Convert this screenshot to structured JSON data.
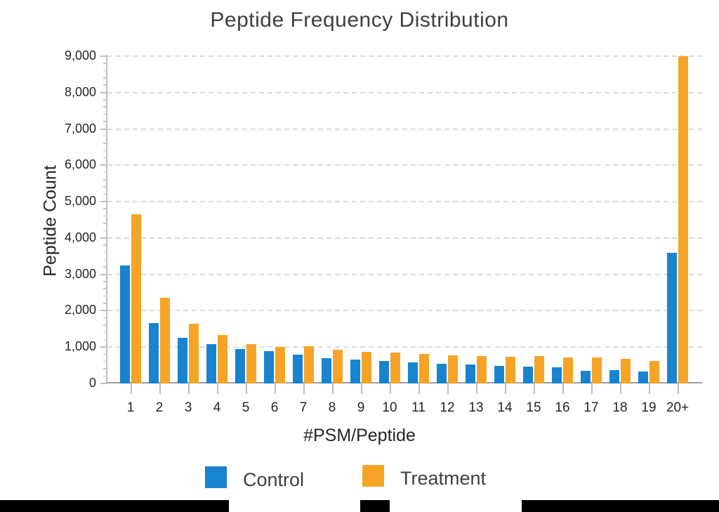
{
  "page": {
    "background": "#ffffff",
    "bottom_bar_color": "#000000"
  },
  "chart_data": {
    "type": "bar",
    "title": "Peptide Frequency Distribution",
    "xlabel": "#PSM/Peptide",
    "ylabel": "Peptide Count",
    "categories": [
      "1",
      "2",
      "3",
      "4",
      "5",
      "6",
      "7",
      "8",
      "9",
      "10",
      "11",
      "12",
      "13",
      "14",
      "15",
      "16",
      "17",
      "18",
      "19",
      "20+"
    ],
    "series": [
      {
        "name": "Control",
        "color": "#1884D0",
        "values": [
          3250,
          1670,
          1250,
          1090,
          950,
          890,
          800,
          700,
          660,
          620,
          580,
          550,
          520,
          480,
          460,
          440,
          350,
          370,
          320,
          3600
        ]
      },
      {
        "name": "Treatment",
        "color": "#F5A428",
        "values": [
          4650,
          2350,
          1640,
          1330,
          1080,
          1000,
          1020,
          930,
          870,
          850,
          810,
          780,
          760,
          730,
          750,
          720,
          710,
          680,
          620,
          9000
        ]
      }
    ],
    "ylim": [
      0,
      9000
    ],
    "y_ticks": [
      [
        0,
        "0"
      ],
      [
        1000,
        "1,000"
      ],
      [
        2000,
        "2,000"
      ],
      [
        3000,
        "3,000"
      ],
      [
        4000,
        "4,000"
      ],
      [
        5000,
        "5,000"
      ],
      [
        6000,
        "6,000"
      ],
      [
        7000,
        "7,000"
      ],
      [
        8000,
        "8,000"
      ],
      [
        9000,
        "9,000"
      ]
    ],
    "y_minor_tick_interval": 200,
    "grid": "horizontal-dashed",
    "legend_position": "bottom"
  },
  "legend": {
    "items": [
      {
        "label": "Control",
        "color": "#1884D0"
      },
      {
        "label": "Treatment",
        "color": "#F5A428"
      }
    ]
  }
}
